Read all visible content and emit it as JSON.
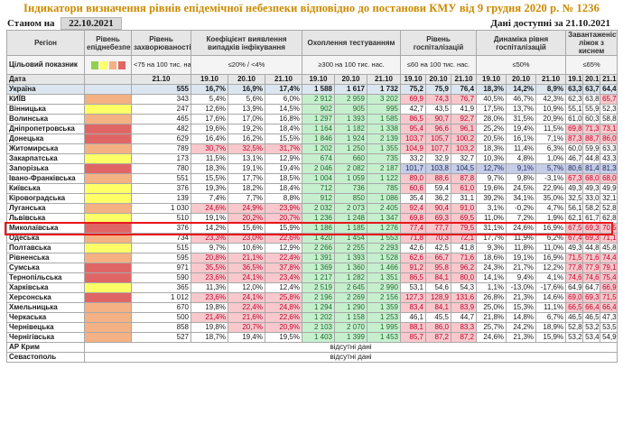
{
  "title": "Індикатори визначення рівнів епідемічної небезпеки відповідно до постанови КМУ від 9 грудня 2020 р. № 1236",
  "as_of_label": "Станом на",
  "as_of_date": "22.10.2021",
  "available_note": "Дані доступні за 21.10.2021",
  "headers": {
    "region": "Регіон",
    "level": "Рівень епіднебезпеки",
    "incidence": "Рівень захворюваності",
    "detection": "Коефіцієнт виявлення випадків інфікування",
    "testing": "Охоплення тестуванням",
    "hosp": "Рівень госпіталізацій",
    "dyn": "Динаміка рівня госпіталізацій",
    "oxygen": "Завантаженість ліжок з киснем"
  },
  "target_row": {
    "label": "Цільовий показник",
    "incidence": "<75 на 100 тис. нас.",
    "detection": "≤20% / <4%",
    "testing": "≥300 на 100 тис. нас.",
    "hosp": "≤60 на 100 тис. нас.",
    "dyn": "≤50%",
    "oxygen": "≤65%"
  },
  "target_swatches": [
    "#92d050",
    "#ffff66",
    "#f4b183",
    "#e06666"
  ],
  "date_row": {
    "label": "Дата",
    "incidence_date": "21.10",
    "dates": [
      "19.10",
      "20.10",
      "21.10"
    ]
  },
  "no_data_text": "відсутні дані",
  "rows": [
    {
      "region": "Україна",
      "level": "",
      "cls": "uk",
      "inc": "555",
      "det": [
        "16,7%",
        "16,9%",
        "17,4%"
      ],
      "tst": [
        "1 588",
        "1 617",
        "1 732"
      ],
      "hsp": [
        "75,2",
        "75,9",
        "76,4"
      ],
      "dyn": [
        "18,3%",
        "14,2%",
        "8,9%"
      ],
      "oxy": [
        "63,3%",
        "63,7%",
        "64,4%"
      ]
    },
    {
      "region": "КИЇВ",
      "level": "orange",
      "inc": "343",
      "det": [
        "5,4%",
        "5,6%",
        "6,0%"
      ],
      "tst": [
        "2 912",
        "2 959",
        "3 202"
      ],
      "hsp": [
        "69,9",
        "74,3",
        "76,7"
      ],
      "dyn": [
        "40,5%",
        "46,7%",
        "42,3%"
      ],
      "oxy": [
        "62,3%",
        "63,8%",
        "65,7%"
      ]
    },
    {
      "region": "Вінницька",
      "level": "yellow",
      "inc": "247",
      "det": [
        "12,6%",
        "13,9%",
        "14,5%"
      ],
      "tst": [
        "902",
        "905",
        "995"
      ],
      "hsp": [
        "42,7",
        "43,5",
        "41,9"
      ],
      "dyn": [
        "17,5%",
        "13,7%",
        "10,9%"
      ],
      "oxy": [
        "55,1%",
        "55,9%",
        "52,3%"
      ]
    },
    {
      "region": "Волинська",
      "level": "orange",
      "inc": "465",
      "det": [
        "17,6%",
        "17,0%",
        "16,8%"
      ],
      "tst": [
        "1 297",
        "1 393",
        "1 585"
      ],
      "hsp": [
        "86,5",
        "90,7",
        "92,7"
      ],
      "dyn": [
        "28,0%",
        "31,5%",
        "20,9%"
      ],
      "oxy": [
        "61,0%",
        "60,3%",
        "58,8%"
      ]
    },
    {
      "region": "Дніпропетровська",
      "level": "red",
      "inc": "482",
      "det": [
        "19,6%",
        "19,2%",
        "18,4%"
      ],
      "tst": [
        "1 164",
        "1 182",
        "1 338"
      ],
      "hsp": [
        "95,4",
        "96,6",
        "96,1"
      ],
      "dyn": [
        "25,2%",
        "19,4%",
        "11,5%"
      ],
      "oxy": [
        "69,8%",
        "71,3%",
        "73,1%"
      ]
    },
    {
      "region": "Донецька",
      "level": "red",
      "inc": "629",
      "det": [
        "16,4%",
        "16,2%",
        "15,5%"
      ],
      "tst": [
        "1 846",
        "1 924",
        "2 139"
      ],
      "hsp": [
        "103,7",
        "105,7",
        "100,2"
      ],
      "dyn": [
        "20,5%",
        "16,1%",
        "7,1%"
      ],
      "oxy": [
        "87,3%",
        "88,7%",
        "86,0%"
      ]
    },
    {
      "region": "Житомирська",
      "level": "orange",
      "inc": "789",
      "det": [
        "30,7%",
        "32,5%",
        "31,7%"
      ],
      "tst": [
        "1 202",
        "1 250",
        "1 355"
      ],
      "hsp": [
        "104,9",
        "107,7",
        "103,2"
      ],
      "dyn": [
        "18,3%",
        "11,4%",
        "6,3%"
      ],
      "oxy": [
        "60,0%",
        "59,9%",
        "63,3%"
      ]
    },
    {
      "region": "Закарпатська",
      "level": "yellow",
      "inc": "173",
      "det": [
        "11,5%",
        "13,1%",
        "12,9%"
      ],
      "tst": [
        "674",
        "660",
        "735"
      ],
      "hsp": [
        "33,2",
        "32,9",
        "32,7"
      ],
      "dyn": [
        "10,3%",
        "4,8%",
        "1,0%"
      ],
      "oxy": [
        "46,7%",
        "44,8%",
        "43,3%"
      ]
    },
    {
      "region": "Запорізька",
      "level": "red",
      "inc": "780",
      "det": [
        "18,3%",
        "19,1%",
        "19,4%"
      ],
      "tst": [
        "2 046",
        "2 082",
        "2 187"
      ],
      "hsp": [
        "101,7",
        "103,8",
        "104,5"
      ],
      "dyn": [
        "12,7%",
        "9,1%",
        "5,7%"
      ],
      "oxy": [
        "80,6%",
        "81,4%",
        "81,3%"
      ]
    },
    {
      "region": "Івано-Франківська",
      "level": "orange",
      "inc": "551",
      "det": [
        "15,5%",
        "17,7%",
        "18,5%"
      ],
      "tst": [
        "1 004",
        "1 059",
        "1 122"
      ],
      "hsp": [
        "89,0",
        "88,6",
        "87,8"
      ],
      "dyn": [
        "9,7%",
        "9,8%",
        "-3,1%"
      ],
      "oxy": [
        "67,3%",
        "68,0%",
        "68,0%"
      ]
    },
    {
      "region": "Київська",
      "level": "yellow",
      "inc": "376",
      "det": [
        "19,3%",
        "18,2%",
        "18,4%"
      ],
      "tst": [
        "712",
        "736",
        "785"
      ],
      "hsp": [
        "60,6",
        "59,4",
        "61,0"
      ],
      "dyn": [
        "19,6%",
        "24,5%",
        "22,9%"
      ],
      "oxy": [
        "49,3%",
        "49,3%",
        "49,9%"
      ]
    },
    {
      "region": "Кіровоградська",
      "level": "yellow",
      "inc": "139",
      "det": [
        "7,4%",
        "7,7%",
        "8,8%"
      ],
      "tst": [
        "912",
        "850",
        "1 086"
      ],
      "hsp": [
        "35,4",
        "36,2",
        "31,1"
      ],
      "dyn": [
        "39,2%",
        "34,1%",
        "35,0%"
      ],
      "oxy": [
        "32,5%",
        "33,0%",
        "32,1%"
      ]
    },
    {
      "region": "Луганська",
      "level": "orange",
      "inc": "1 030",
      "det": [
        "24,6%",
        "24,9%",
        "23,9%"
      ],
      "tst": [
        "2 032",
        "2 073",
        "2 405"
      ],
      "hsp": [
        "92,4",
        "90,4",
        "91,0"
      ],
      "dyn": [
        "3,1%",
        "-0,2%",
        "4,7%"
      ],
      "oxy": [
        "56,1%",
        "58,2%",
        "52,8%"
      ]
    },
    {
      "region": "Львівська",
      "level": "yellow",
      "inc": "510",
      "det": [
        "19,1%",
        "20,2%",
        "20,7%"
      ],
      "tst": [
        "1 236",
        "1 248",
        "1 347"
      ],
      "hsp": [
        "69,8",
        "69,3",
        "69,5"
      ],
      "dyn": [
        "11,0%",
        "7,2%",
        "1,9%"
      ],
      "oxy": [
        "62,1%",
        "61,7%",
        "62,8%"
      ]
    },
    {
      "region": "Миколаївська",
      "level": "red",
      "inc": "376",
      "det": [
        "14,2%",
        "15,6%",
        "15,9%"
      ],
      "tst": [
        "1 186",
        "1 185",
        "1 276"
      ],
      "hsp": [
        "77,4",
        "77,7",
        "79,5"
      ],
      "dyn": [
        "31,1%",
        "24,6%",
        "16,9%"
      ],
      "oxy": [
        "67,5%",
        "69,3%",
        "70,5%"
      ]
    },
    {
      "region": "Одеська",
      "level": "orange",
      "inc": "734",
      "det": [
        "23,3%",
        "23,0%",
        "22,6%"
      ],
      "tst": [
        "1 420",
        "1 454",
        "1 553"
      ],
      "hsp": [
        "71,8",
        "70,3",
        "72,1"
      ],
      "dyn": [
        "17,7%",
        "11,9%",
        "6,2%"
      ],
      "oxy": [
        "67,4%",
        "69,3%",
        "71,1%"
      ]
    },
    {
      "region": "Полтавська",
      "level": "yellow",
      "inc": "515",
      "det": [
        "9,7%",
        "10,6%",
        "12,9%"
      ],
      "tst": [
        "2 266",
        "2 255",
        "2 293"
      ],
      "hsp": [
        "42,6",
        "42,5",
        "41,8"
      ],
      "dyn": [
        "9,3%",
        "11,8%",
        "11,0%"
      ],
      "oxy": [
        "49,3%",
        "44,8%",
        "45,8%"
      ]
    },
    {
      "region": "Рівненська",
      "level": "orange",
      "inc": "595",
      "det": [
        "20,8%",
        "21,1%",
        "22,4%"
      ],
      "tst": [
        "1 391",
        "1 393",
        "1 528"
      ],
      "hsp": [
        "62,6",
        "66,7",
        "71,6"
      ],
      "dyn": [
        "18,6%",
        "19,1%",
        "16,9%"
      ],
      "oxy": [
        "71,5%",
        "71,6%",
        "74,4%"
      ]
    },
    {
      "region": "Сумська",
      "level": "red",
      "inc": "971",
      "det": [
        "35,5%",
        "36,5%",
        "37,8%"
      ],
      "tst": [
        "1 369",
        "1 360",
        "1 466"
      ],
      "hsp": [
        "91,2",
        "95,8",
        "96,2"
      ],
      "dyn": [
        "24,3%",
        "21,7%",
        "12,2%"
      ],
      "oxy": [
        "77,8%",
        "77,9%",
        "79,1%"
      ]
    },
    {
      "region": "Тернопільська",
      "level": "red",
      "inc": "590",
      "det": [
        "23,6%",
        "24,1%",
        "23,4%"
      ],
      "tst": [
        "1 217",
        "1 282",
        "1 351"
      ],
      "hsp": [
        "86,5",
        "84,1",
        "80,0"
      ],
      "dyn": [
        "14,1%",
        "9,4%",
        "4,1%"
      ],
      "oxy": [
        "74,6%",
        "74,6%",
        "75,4%"
      ]
    },
    {
      "region": "Харківська",
      "level": "yellow",
      "inc": "365",
      "det": [
        "11,3%",
        "12,0%",
        "12,4%"
      ],
      "tst": [
        "2 519",
        "2 645",
        "2 990"
      ],
      "hsp": [
        "53,1",
        "54,6",
        "54,3"
      ],
      "dyn": [
        "1,1%",
        "-13,0%",
        "-17,6%"
      ],
      "oxy": [
        "64,9%",
        "64,7%",
        "66,9%"
      ]
    },
    {
      "region": "Херсонська",
      "level": "red",
      "inc": "1 012",
      "det": [
        "23,6%",
        "24,1%",
        "25,8%"
      ],
      "tst": [
        "2 196",
        "2 269",
        "2 156"
      ],
      "hsp": [
        "127,3",
        "128,9",
        "131,6"
      ],
      "dyn": [
        "26,8%",
        "21,3%",
        "14,6%"
      ],
      "oxy": [
        "69,0%",
        "69,3%",
        "71,5%"
      ]
    },
    {
      "region": "Хмельницька",
      "level": "orange",
      "inc": "670",
      "det": [
        "19,8%",
        "22,4%",
        "24,8%"
      ],
      "tst": [
        "1 294",
        "1 290",
        "1 359"
      ],
      "hsp": [
        "83,4",
        "84,1",
        "83,9"
      ],
      "dyn": [
        "25,0%",
        "15,3%",
        "11,1%"
      ],
      "oxy": [
        "66,5%",
        "66,4%",
        "66,4%"
      ]
    },
    {
      "region": "Черкаська",
      "level": "orange",
      "inc": "500",
      "det": [
        "21,4%",
        "21,6%",
        "22,6%"
      ],
      "tst": [
        "1 202",
        "1 158",
        "1 253"
      ],
      "hsp": [
        "46,1",
        "45,5",
        "44,7"
      ],
      "dyn": [
        "21,8%",
        "14,8%",
        "6,7%"
      ],
      "oxy": [
        "46,5%",
        "46,5%",
        "47,3%"
      ]
    },
    {
      "region": "Чернівецька",
      "level": "orange",
      "inc": "858",
      "det": [
        "19,8%",
        "20,7%",
        "20,9%"
      ],
      "tst": [
        "2 103",
        "2 070",
        "1 995"
      ],
      "hsp": [
        "88,1",
        "86,0",
        "83,3"
      ],
      "dyn": [
        "25,7%",
        "24,2%",
        "18,9%"
      ],
      "oxy": [
        "52,8%",
        "53,2%",
        "53,5%"
      ]
    },
    {
      "region": "Чернігівська",
      "level": "orange",
      "inc": "527",
      "det": [
        "18,7%",
        "19,4%",
        "19,5%"
      ],
      "tst": [
        "1 403",
        "1 399",
        "1 453"
      ],
      "hsp": [
        "85,7",
        "87,2",
        "87,2"
      ],
      "dyn": [
        "24,6%",
        "21,3%",
        "15,9%"
      ],
      "oxy": [
        "53,2%",
        "53,4%",
        "54,9%"
      ]
    }
  ],
  "no_data_rows": [
    {
      "region": "АР Крим"
    },
    {
      "region": "Севастополь"
    }
  ],
  "highlighted_region": "Миколаївська"
}
